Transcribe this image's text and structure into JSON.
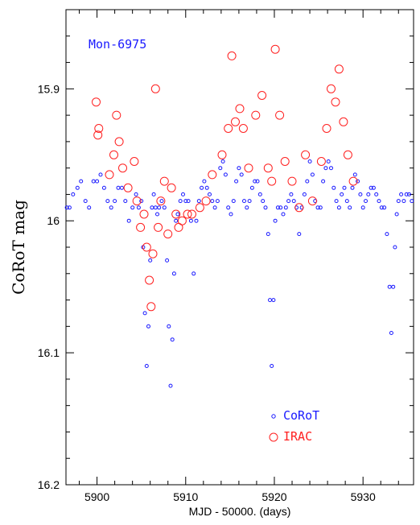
{
  "chart_data": {
    "type": "scatter",
    "annotation": "Mon-6975",
    "xlabel": "MJD - 50000. (days)",
    "ylabel": "CoRoT mag",
    "xlim": [
      5896.5,
      5935.7
    ],
    "ylim": [
      16.2,
      15.84
    ],
    "y_inverted": true,
    "x_ticks": [
      5900,
      5910,
      5920,
      5930
    ],
    "x_tick_labels": [
      "5900",
      "5910",
      "5920",
      "5930"
    ],
    "y_ticks": [
      15.9,
      16.0,
      16.1,
      16.2
    ],
    "y_tick_labels": [
      "15.9",
      "16",
      "16.1",
      "16.2"
    ],
    "legend_position": "bottom-right",
    "grid": false,
    "series": [
      {
        "name": "CoRoT",
        "color": "#1a1aff",
        "marker": "small-open-circle",
        "x": [
          5896.6,
          5896.9,
          5897.3,
          5897.8,
          5898.2,
          5898.7,
          5899.1,
          5899.6,
          5900.0,
          5900.4,
          5900.8,
          5901.2,
          5901.6,
          5902.0,
          5902.4,
          5902.8,
          5903.2,
          5903.6,
          5904.0,
          5904.4,
          5904.7,
          5905.0,
          5905.2,
          5905.4,
          5905.6,
          5905.8,
          5906.0,
          5906.2,
          5906.4,
          5906.6,
          5906.8,
          5907.0,
          5907.3,
          5907.6,
          5907.9,
          5908.1,
          5908.3,
          5908.5,
          5908.7,
          5908.9,
          5909.1,
          5909.4,
          5909.7,
          5910.0,
          5910.3,
          5910.6,
          5910.9,
          5911.2,
          5911.5,
          5911.8,
          5912.1,
          5912.4,
          5912.7,
          5913.0,
          5913.3,
          5913.6,
          5913.9,
          5914.2,
          5914.5,
          5914.8,
          5915.1,
          5915.4,
          5915.7,
          5916.0,
          5916.3,
          5916.6,
          5916.9,
          5917.2,
          5917.5,
          5917.8,
          5918.1,
          5918.4,
          5918.7,
          5919.0,
          5919.3,
          5919.5,
          5919.7,
          5919.9,
          5920.1,
          5920.4,
          5920.7,
          5921.0,
          5921.3,
          5921.6,
          5921.9,
          5922.2,
          5922.5,
          5922.8,
          5923.1,
          5923.4,
          5923.7,
          5924.0,
          5924.3,
          5924.6,
          5924.9,
          5925.2,
          5925.5,
          5925.8,
          5926.1,
          5926.4,
          5926.7,
          5927.0,
          5927.3,
          5927.6,
          5927.9,
          5928.2,
          5928.5,
          5928.8,
          5929.1,
          5929.4,
          5929.7,
          5930.0,
          5930.3,
          5930.6,
          5930.9,
          5931.2,
          5931.5,
          5931.8,
          5932.1,
          5932.4,
          5932.7,
          5933.0,
          5933.2,
          5933.4,
          5933.6,
          5933.8,
          5934.0,
          5934.3,
          5934.6,
          5934.9,
          5935.2,
          5935.5
        ],
        "y": [
          15.99,
          15.99,
          15.98,
          15.975,
          15.97,
          15.985,
          15.99,
          15.97,
          15.97,
          15.965,
          15.975,
          15.985,
          15.99,
          15.985,
          15.975,
          15.975,
          15.985,
          16.0,
          15.99,
          15.98,
          15.99,
          15.985,
          16.02,
          16.07,
          16.11,
          16.08,
          16.03,
          15.99,
          15.98,
          15.99,
          15.995,
          15.99,
          15.985,
          15.99,
          16.03,
          16.08,
          16.125,
          16.09,
          16.04,
          16.0,
          15.995,
          15.985,
          15.98,
          15.985,
          15.985,
          16.0,
          16.04,
          16.0,
          15.985,
          15.975,
          15.97,
          15.975,
          15.98,
          15.985,
          15.99,
          15.985,
          15.96,
          15.955,
          15.965,
          15.99,
          15.995,
          15.985,
          15.97,
          15.96,
          15.965,
          15.985,
          15.99,
          15.985,
          15.975,
          15.97,
          15.97,
          15.98,
          15.985,
          15.99,
          16.01,
          16.06,
          16.11,
          16.06,
          16.0,
          15.99,
          15.99,
          15.995,
          15.99,
          15.985,
          15.98,
          15.985,
          15.99,
          16.01,
          15.99,
          15.98,
          15.97,
          15.955,
          15.965,
          15.985,
          15.99,
          15.99,
          15.97,
          15.96,
          15.955,
          15.96,
          15.975,
          15.985,
          15.99,
          15.98,
          15.975,
          15.985,
          15.99,
          15.975,
          15.965,
          15.97,
          15.98,
          15.99,
          15.985,
          15.98,
          15.975,
          15.975,
          15.98,
          15.985,
          15.99,
          15.99,
          16.01,
          16.05,
          16.085,
          16.05,
          16.02,
          15.995,
          15.985,
          15.98,
          15.985,
          15.98,
          15.98,
          15.985
        ]
      },
      {
        "name": "IRAC",
        "color": "#ff2020",
        "marker": "large-open-circle",
        "x": [
          5899.9,
          5900.1,
          5900.2,
          5901.4,
          5901.9,
          5902.2,
          5902.5,
          5902.9,
          5903.5,
          5904.2,
          5904.5,
          5904.9,
          5905.3,
          5905.6,
          5905.9,
          5906.1,
          5906.3,
          5906.6,
          5906.9,
          5907.2,
          5907.6,
          5908.0,
          5908.4,
          5908.9,
          5909.2,
          5909.6,
          5910.2,
          5910.7,
          5911.6,
          5912.3,
          5913.0,
          5914.1,
          5914.8,
          5915.2,
          5915.6,
          5916.1,
          5916.5,
          5917.1,
          5917.9,
          5918.6,
          5919.3,
          5919.7,
          5920.1,
          5920.6,
          5921.2,
          5922.0,
          5922.8,
          5923.5,
          5924.3,
          5925.3,
          5925.9,
          5926.4,
          5926.9,
          5927.3,
          5927.8,
          5928.3,
          5928.9
        ],
        "y": [
          15.91,
          15.935,
          15.93,
          15.965,
          15.95,
          15.92,
          15.94,
          15.96,
          15.975,
          15.955,
          15.985,
          16.005,
          15.995,
          16.02,
          16.045,
          16.065,
          16.025,
          15.9,
          16.005,
          15.985,
          15.97,
          16.01,
          15.975,
          15.995,
          16.005,
          16.0,
          15.995,
          15.995,
          15.99,
          15.985,
          15.965,
          15.95,
          15.93,
          15.875,
          15.925,
          15.915,
          15.93,
          15.96,
          15.92,
          15.905,
          15.96,
          15.97,
          15.87,
          15.92,
          15.955,
          15.97,
          15.99,
          15.95,
          15.985,
          15.955,
          15.93,
          15.9,
          15.91,
          15.885,
          15.925,
          15.95,
          15.97
        ]
      }
    ]
  }
}
